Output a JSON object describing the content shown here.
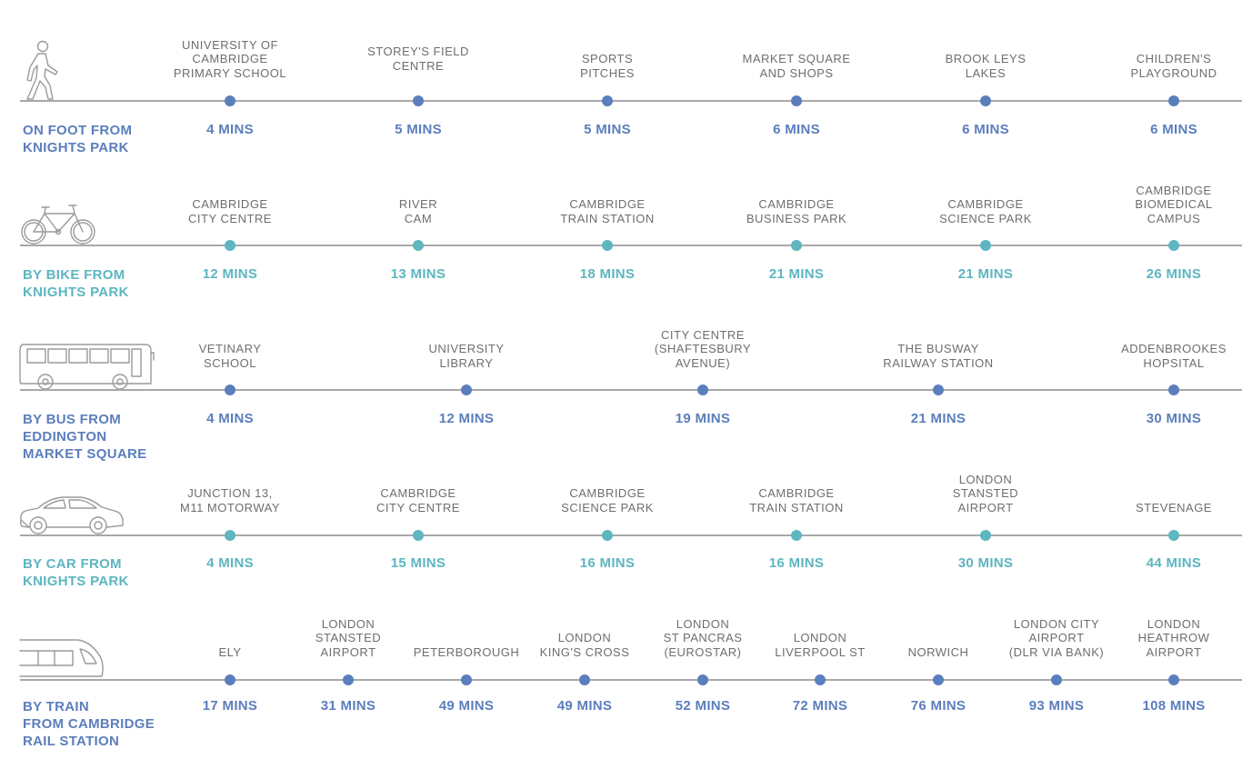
{
  "colors": {
    "blue": "#5b7ebd",
    "teal": "#5db6c0",
    "line": "#a8a8a8",
    "label": "#6e6e6e"
  },
  "rows": [
    {
      "icon": "walking-person-icon",
      "mode": "ON FOOT FROM\nKNIGHTS PARK",
      "stops": [
        {
          "name": "UNIVERSITY OF\nCAMBRIDGE\nPRIMARY SCHOOL",
          "time": "4 MINS"
        },
        {
          "name": "STOREY'S FIELD\nCENTRE",
          "time": "5 MINS"
        },
        {
          "name": "SPORTS\nPITCHES",
          "time": "5 MINS"
        },
        {
          "name": "MARKET SQUARE\nAND SHOPS",
          "time": "6 MINS"
        },
        {
          "name": "BROOK LEYS\nLAKES",
          "time": "6 MINS"
        },
        {
          "name": "CHILDREN'S\nPLAYGROUND",
          "time": "6 MINS"
        }
      ]
    },
    {
      "icon": "bicycle-icon",
      "mode": "BY BIKE FROM\nKNIGHTS PARK",
      "stops": [
        {
          "name": "CAMBRIDGE\nCITY CENTRE",
          "time": "12 MINS"
        },
        {
          "name": "RIVER\nCAM",
          "time": "13 MINS"
        },
        {
          "name": "CAMBRIDGE\nTRAIN STATION",
          "time": "18 MINS"
        },
        {
          "name": "CAMBRIDGE\nBUSINESS PARK",
          "time": "21 MINS"
        },
        {
          "name": "CAMBRIDGE\nSCIENCE PARK",
          "time": "21 MINS"
        },
        {
          "name": "CAMBRIDGE\nBIOMEDICAL\nCAMPUS",
          "time": "26 MINS"
        }
      ]
    },
    {
      "icon": "bus-icon",
      "mode": "BY BUS FROM\nEDDINGTON\nMARKET SQUARE",
      "stops": [
        {
          "name": "VETINARY\nSCHOOL",
          "time": "4 MINS"
        },
        {
          "name": "UNIVERSITY\nLIBRARY",
          "time": "12 MINS"
        },
        {
          "name": "CITY CENTRE\n(SHAFTESBURY\nAVENUE)",
          "time": "19 MINS"
        },
        {
          "name": "THE BUSWAY\nRAILWAY STATION",
          "time": "21 MINS"
        },
        {
          "name": "ADDENBROOKES\nHOPSITAL",
          "time": "30 MINS"
        }
      ]
    },
    {
      "icon": "car-icon",
      "mode": "BY CAR FROM\nKNIGHTS PARK",
      "stops": [
        {
          "name": "JUNCTION 13,\nM11 MOTORWAY",
          "time": "4 MINS"
        },
        {
          "name": "CAMBRIDGE\nCITY CENTRE",
          "time": "15 MINS"
        },
        {
          "name": "CAMBRIDGE\nSCIENCE PARK",
          "time": "16 MINS"
        },
        {
          "name": "CAMBRIDGE\nTRAIN STATION",
          "time": "16 MINS"
        },
        {
          "name": "LONDON\nSTANSTED\nAIRPORT",
          "time": "30 MINS"
        },
        {
          "name": "STEVENAGE",
          "time": "44 MINS"
        }
      ]
    },
    {
      "icon": "train-icon",
      "mode": "BY TRAIN\nFROM CAMBRIDGE\nRAIL STATION",
      "stops": [
        {
          "name": "ELY",
          "time": "17 MINS"
        },
        {
          "name": "LONDON\nSTANSTED\nAIRPORT",
          "time": "31 MINS"
        },
        {
          "name": "PETERBOROUGH",
          "time": "49 MINS"
        },
        {
          "name": "LONDON\nKING'S CROSS",
          "time": "49 MINS"
        },
        {
          "name": "LONDON\nST PANCRAS\n(EUROSTAR)",
          "time": "52 MINS"
        },
        {
          "name": "LONDON\nLIVERPOOL ST",
          "time": "72 MINS"
        },
        {
          "name": "NORWICH",
          "time": "76 MINS"
        },
        {
          "name": "LONDON CITY\nAIRPORT\n(DLR VIA BANK)",
          "time": "93 MINS"
        },
        {
          "name": "LONDON\nHEATHROW\nAIRPORT",
          "time": "108 MINS"
        }
      ]
    }
  ]
}
